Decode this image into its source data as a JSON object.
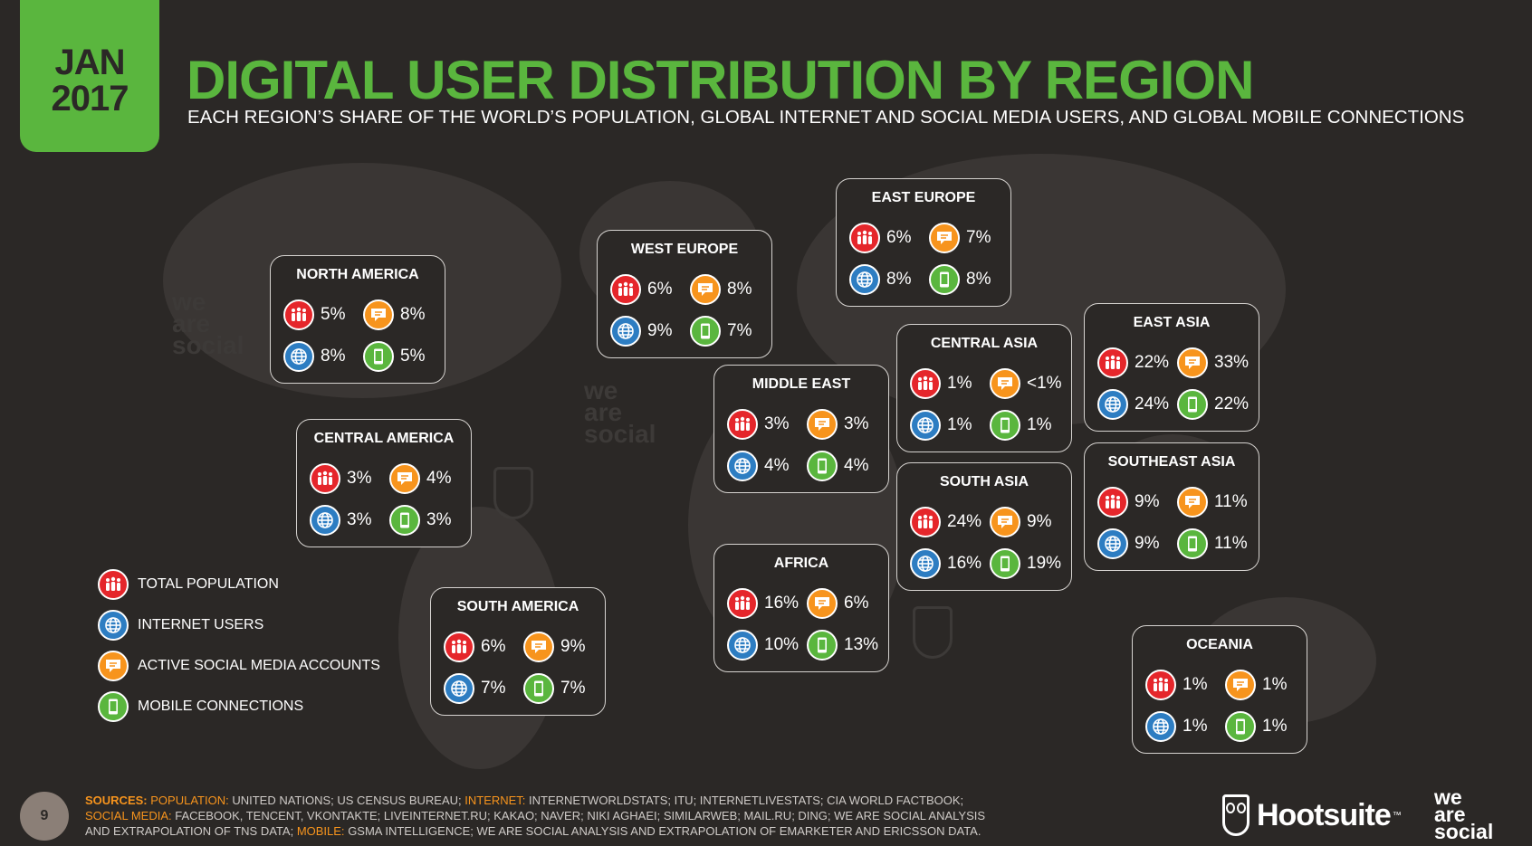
{
  "date": {
    "month": "JAN",
    "year": "2017"
  },
  "title": "DIGITAL USER DISTRIBUTION BY REGION",
  "subtitle": "EACH REGION’S SHARE OF THE WORLD’S POPULATION, GLOBAL INTERNET AND SOCIAL MEDIA USERS, AND GLOBAL MOBILE CONNECTIONS",
  "colors": {
    "population": "#e5262b",
    "internet": "#2d7dc2",
    "social": "#f7941d",
    "mobile": "#5ab63e",
    "title": "#5ab63e",
    "background": "#2b2826"
  },
  "icons": {
    "population": "people-icon",
    "internet": "globe-icon",
    "social": "chat-bubble-icon",
    "mobile": "mobile-phone-icon"
  },
  "regions": [
    {
      "name": "NORTH AMERICA",
      "population": "5%",
      "social": "8%",
      "internet": "8%",
      "mobile": "5%"
    },
    {
      "name": "WEST EUROPE",
      "population": "6%",
      "social": "8%",
      "internet": "9%",
      "mobile": "7%"
    },
    {
      "name": "EAST EUROPE",
      "population": "6%",
      "social": "7%",
      "internet": "8%",
      "mobile": "8%"
    },
    {
      "name": "CENTRAL ASIA",
      "population": "1%",
      "social": "<1%",
      "internet": "1%",
      "mobile": "1%"
    },
    {
      "name": "EAST ASIA",
      "population": "22%",
      "social": "33%",
      "internet": "24%",
      "mobile": "22%"
    },
    {
      "name": "MIDDLE EAST",
      "population": "3%",
      "social": "3%",
      "internet": "4%",
      "mobile": "4%"
    },
    {
      "name": "CENTRAL AMERICA",
      "population": "3%",
      "social": "4%",
      "internet": "3%",
      "mobile": "3%"
    },
    {
      "name": "SOUTH ASIA",
      "population": "24%",
      "social": "9%",
      "internet": "16%",
      "mobile": "19%"
    },
    {
      "name": "SOUTHEAST ASIA",
      "population": "9%",
      "social": "11%",
      "internet": "9%",
      "mobile": "11%"
    },
    {
      "name": "AFRICA",
      "population": "16%",
      "social": "6%",
      "internet": "10%",
      "mobile": "13%"
    },
    {
      "name": "SOUTH AMERICA",
      "population": "6%",
      "social": "9%",
      "internet": "7%",
      "mobile": "7%"
    },
    {
      "name": "OCEANIA",
      "population": "1%",
      "social": "1%",
      "internet": "1%",
      "mobile": "1%"
    }
  ],
  "legend": [
    {
      "key": "population",
      "label": "TOTAL POPULATION"
    },
    {
      "key": "internet",
      "label": "INTERNET USERS"
    },
    {
      "key": "social",
      "label": "ACTIVE SOCIAL MEDIA ACCOUNTS"
    },
    {
      "key": "mobile",
      "label": "MOBILE CONNECTIONS"
    }
  ],
  "watermark": "we are social",
  "page_number": "9",
  "sources": {
    "label": "SOURCES:",
    "population_label": "POPULATION:",
    "population_text": "UNITED NATIONS; US CENSUS BUREAU;",
    "internet_label": "INTERNET:",
    "internet_text": "INTERNETWORLDSTATS; ITU; INTERNETLIVESTATS; CIA WORLD FACTBOOK;",
    "social_label": "SOCIAL MEDIA:",
    "social_text": "FACEBOOK, TENCENT, VKONTAKTE; LIVEINTERNET.RU; KAKAO; NAVER; NIKI AGHAEI; SIMILARWEB; MAIL.RU; DING; WE ARE SOCIAL ANALYSIS AND EXTRAPOLATION OF TNS DATA;",
    "mobile_label": "MOBILE:",
    "mobile_text": "GSMA INTELLIGENCE; WE ARE SOCIAL ANALYSIS AND EXTRAPOLATION OF EMARKETER AND ERICSSON DATA."
  },
  "brand": {
    "hootsuite": "Hootsuite",
    "tm": "™",
    "we": "we",
    "are": "are",
    "social": "social"
  }
}
